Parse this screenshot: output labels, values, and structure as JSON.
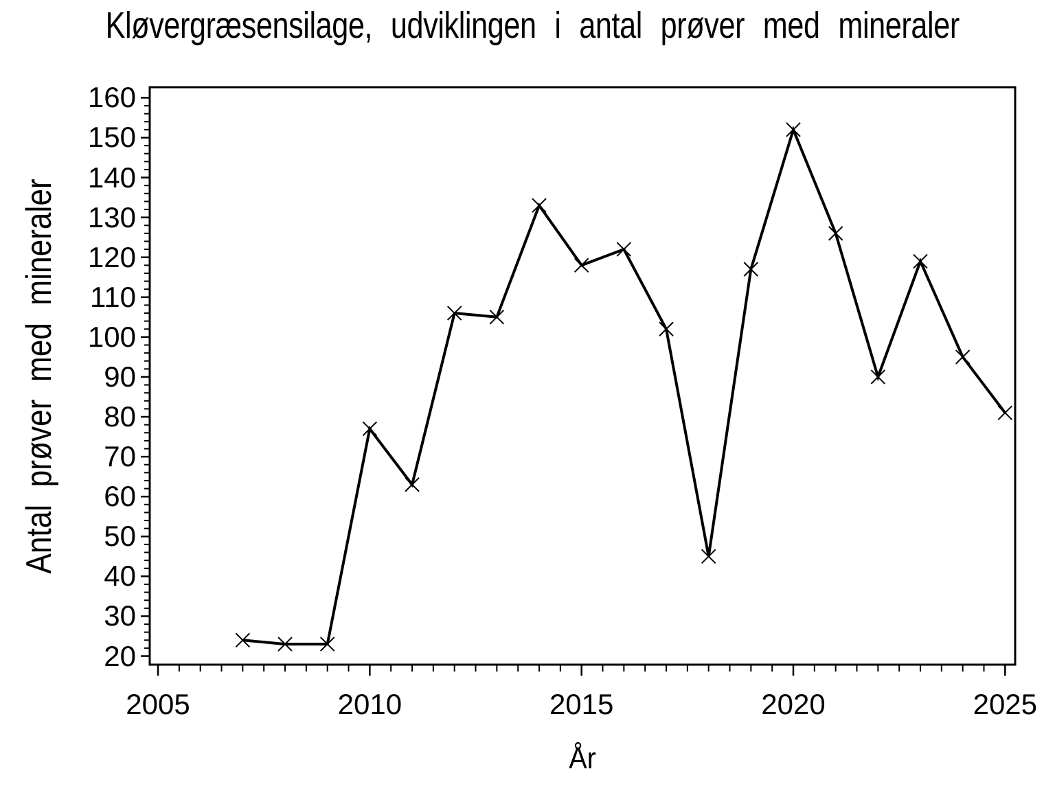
{
  "page": {
    "background": "#ffffff",
    "foreground": "#000000"
  },
  "chart_data": {
    "type": "line",
    "title": "Kløvergræsensilage, udviklingen i antal prøver med mineraler",
    "xlabel": "År",
    "ylabel": "Antal prøver med mineraler",
    "grid": false,
    "legend": false,
    "line_color": "#000000",
    "marker": "x",
    "x_axis": {
      "min": 2004.805,
      "max": 2025.238,
      "major_ticks": [
        2005,
        2010,
        2015,
        2020,
        2025
      ],
      "major_tick_labels": [
        "2005",
        "2010",
        "2015",
        "2020",
        "2025"
      ],
      "minor_step": 0.5,
      "minor_start": 2005,
      "minor_end": 2025
    },
    "y_axis": {
      "min": 17.85,
      "max": 162.65,
      "major_ticks": [
        20,
        30,
        40,
        50,
        60,
        70,
        80,
        90,
        100,
        110,
        120,
        130,
        140,
        150,
        160
      ],
      "major_tick_labels": [
        "20",
        "30",
        "40",
        "50",
        "60",
        "70",
        "80",
        "90",
        "100",
        "110",
        "120",
        "130",
        "140",
        "150",
        "160"
      ],
      "minor_step": 2,
      "minor_start": 20,
      "minor_end": 160
    },
    "series": [
      {
        "name": "Antal prøver med mineraler",
        "marker": "x",
        "color": "#000000",
        "x": [
          2007,
          2008,
          2009,
          2010,
          2011,
          2012,
          2013,
          2014,
          2015,
          2016,
          2017,
          2018,
          2019,
          2020,
          2021,
          2022,
          2023,
          2024,
          2025
        ],
        "y": [
          24,
          23,
          23,
          77,
          63,
          106,
          105,
          133,
          118,
          122,
          102,
          45,
          117,
          152,
          126,
          90,
          119,
          95,
          81
        ]
      }
    ]
  }
}
